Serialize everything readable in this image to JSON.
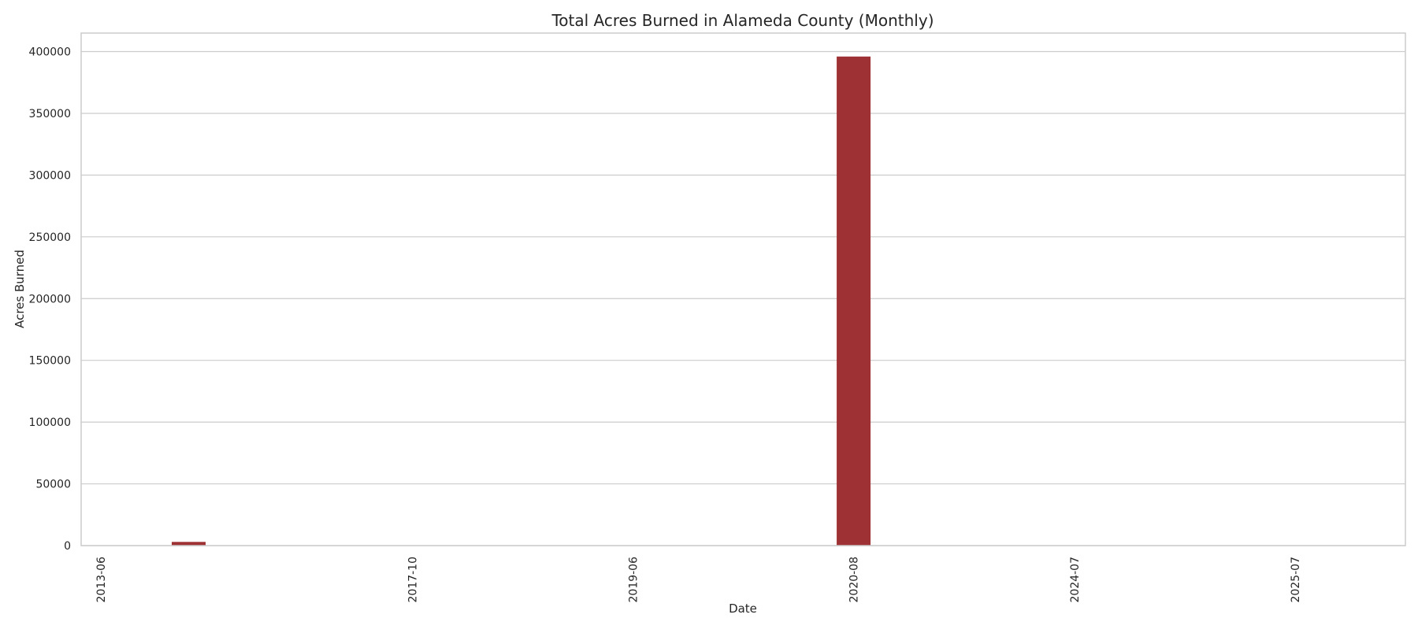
{
  "chart_data": {
    "type": "bar",
    "title": "Total Acres Burned in Alameda County (Monthly)",
    "xlabel": "Date",
    "ylabel": "Acres Burned",
    "categories": [
      "2013-06",
      "2017-10",
      "2019-06",
      "2020-08",
      "2024-07",
      "2025-07"
    ],
    "values": [
      3000,
      0,
      0,
      396000,
      0,
      0
    ],
    "ylim": [
      0,
      415000
    ],
    "yticks": [
      0,
      50000,
      100000,
      150000,
      200000,
      250000,
      300000,
      350000,
      400000
    ],
    "grid": true,
    "legend": "none",
    "bar_color": "#9e3133",
    "grid_color": "#cccccc",
    "axis_color": "#cccccc"
  }
}
